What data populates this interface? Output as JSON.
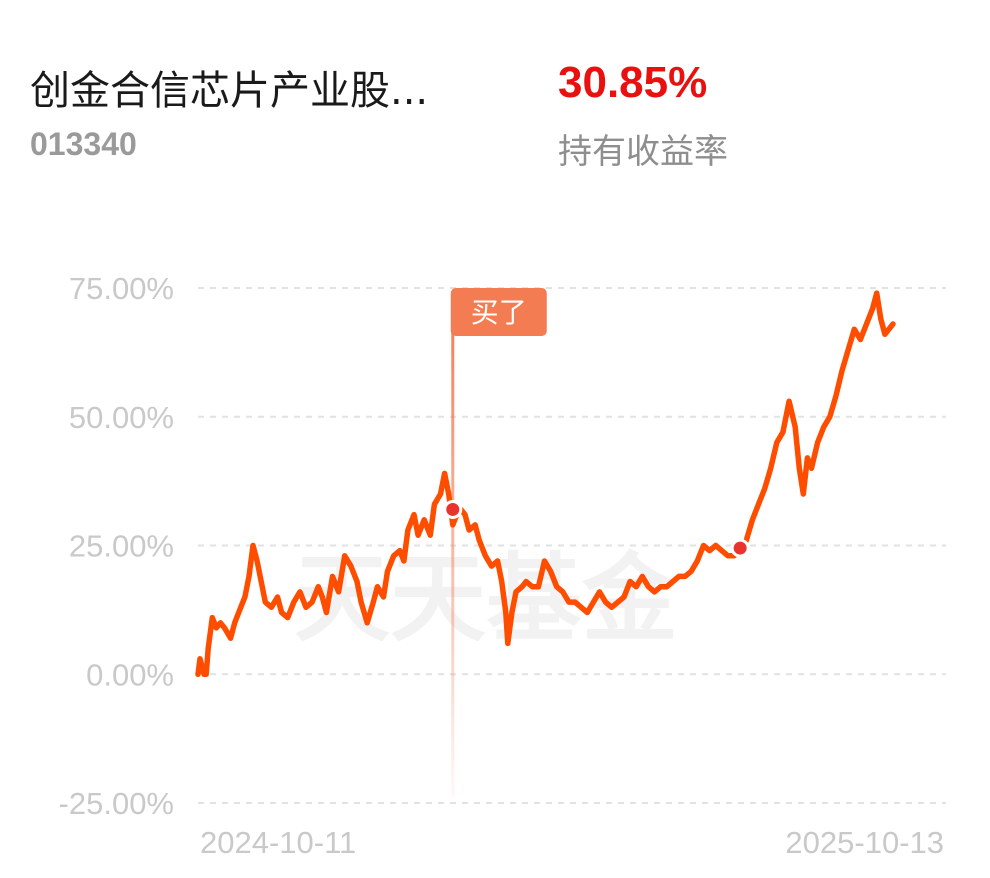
{
  "header": {
    "fund_name": "创金合信芯片产业股...",
    "fund_code": "013340",
    "return_value": "30.85%",
    "return_label": "持有收益率"
  },
  "colors": {
    "line": "#ff4d00",
    "return": "#e8110f",
    "marker": "#e8342c",
    "buy_tag": "#f47c52",
    "grid": "#e2e2e2",
    "axis_text": "#c9c9c9"
  },
  "chart_data": {
    "type": "line",
    "title": "",
    "xlabel": "",
    "ylabel": "",
    "x_range": [
      "2024-10-11",
      "2025-10-13"
    ],
    "x_tick_labels": [
      "2024-10-11",
      "2025-10-13"
    ],
    "y_ticks": [
      75,
      50,
      25,
      0,
      -25
    ],
    "y_tick_labels": [
      "75.00%",
      "50.00%",
      "25.00%",
      "0.00%",
      "-25.00%"
    ],
    "ylim": [
      -25,
      75
    ],
    "grid": "horizontal dashed",
    "watermark": "天天基金",
    "series": [
      {
        "points": [
          [
            "2024-10-11",
            0
          ],
          [
            "2024-10-12",
            3
          ],
          [
            "2024-10-14",
            0
          ],
          [
            "2024-10-15",
            0
          ],
          [
            "2024-10-16",
            5
          ],
          [
            "2024-10-18",
            11
          ],
          [
            "2024-10-20",
            9
          ],
          [
            "2024-10-22",
            10
          ],
          [
            "2024-10-24",
            9
          ],
          [
            "2024-10-27",
            7
          ],
          [
            "2024-10-29",
            10
          ],
          [
            "2024-11-01",
            13
          ],
          [
            "2024-11-03",
            15
          ],
          [
            "2024-11-05",
            19
          ],
          [
            "2024-11-07",
            25
          ],
          [
            "2024-11-09",
            22
          ],
          [
            "2024-11-11",
            18
          ],
          [
            "2024-11-13",
            14
          ],
          [
            "2024-11-16",
            13
          ],
          [
            "2024-11-19",
            15
          ],
          [
            "2024-11-21",
            12
          ],
          [
            "2024-11-24",
            11
          ],
          [
            "2024-11-27",
            14
          ],
          [
            "2024-11-30",
            16
          ],
          [
            "2024-12-03",
            13
          ],
          [
            "2024-12-06",
            14
          ],
          [
            "2024-12-09",
            17
          ],
          [
            "2024-12-11",
            15
          ],
          [
            "2024-12-13",
            12
          ],
          [
            "2024-12-16",
            19
          ],
          [
            "2024-12-19",
            16
          ],
          [
            "2024-12-22",
            23
          ],
          [
            "2024-12-25",
            21
          ],
          [
            "2024-12-28",
            18
          ],
          [
            "2024-12-30",
            14
          ],
          [
            "2025-01-02",
            10
          ],
          [
            "2025-01-05",
            14
          ],
          [
            "2025-01-07",
            17
          ],
          [
            "2025-01-10",
            15
          ],
          [
            "2025-01-12",
            20
          ],
          [
            "2025-01-15",
            23
          ],
          [
            "2025-01-18",
            24
          ],
          [
            "2025-01-20",
            22
          ],
          [
            "2025-01-22",
            28
          ],
          [
            "2025-01-25",
            31
          ],
          [
            "2025-01-27",
            27
          ],
          [
            "2025-01-30",
            30
          ],
          [
            "2025-02-02",
            27
          ],
          [
            "2025-02-04",
            33
          ],
          [
            "2025-02-07",
            35
          ],
          [
            "2025-02-09",
            39
          ],
          [
            "2025-02-11",
            35
          ],
          [
            "2025-02-13",
            29
          ],
          [
            "2025-02-15",
            31
          ],
          [
            "2025-02-17",
            32
          ],
          [
            "2025-02-19",
            31
          ],
          [
            "2025-02-21",
            28
          ],
          [
            "2025-02-24",
            29
          ],
          [
            "2025-02-26",
            26
          ],
          [
            "2025-03-01",
            23
          ],
          [
            "2025-03-04",
            21
          ],
          [
            "2025-03-07",
            22
          ],
          [
            "2025-03-09",
            18
          ],
          [
            "2025-03-11",
            12
          ],
          [
            "2025-03-12",
            6
          ],
          [
            "2025-03-14",
            12
          ],
          [
            "2025-03-16",
            16
          ],
          [
            "2025-03-19",
            17
          ],
          [
            "2025-03-21",
            18
          ],
          [
            "2025-03-24",
            17
          ],
          [
            "2025-03-27",
            17
          ],
          [
            "2025-03-30",
            22
          ],
          [
            "2025-04-02",
            20
          ],
          [
            "2025-04-05",
            17
          ],
          [
            "2025-04-08",
            16
          ],
          [
            "2025-04-11",
            14
          ],
          [
            "2025-04-14",
            14
          ],
          [
            "2025-04-17",
            13
          ],
          [
            "2025-04-20",
            12
          ],
          [
            "2025-04-23",
            14
          ],
          [
            "2025-04-26",
            16
          ],
          [
            "2025-04-29",
            14
          ],
          [
            "2025-05-02",
            13
          ],
          [
            "2025-05-05",
            14
          ],
          [
            "2025-05-08",
            15
          ],
          [
            "2025-05-11",
            18
          ],
          [
            "2025-05-14",
            17
          ],
          [
            "2025-05-17",
            19
          ],
          [
            "2025-05-20",
            17
          ],
          [
            "2025-05-23",
            16
          ],
          [
            "2025-05-26",
            17
          ],
          [
            "2025-05-29",
            17
          ],
          [
            "2025-06-01",
            18
          ],
          [
            "2025-06-04",
            19
          ],
          [
            "2025-06-07",
            19
          ],
          [
            "2025-06-10",
            20
          ],
          [
            "2025-06-13",
            22
          ],
          [
            "2025-06-16",
            25
          ],
          [
            "2025-06-19",
            24
          ],
          [
            "2025-06-22",
            25
          ],
          [
            "2025-06-25",
            24
          ],
          [
            "2025-06-28",
            23
          ],
          [
            "2025-07-01",
            23
          ],
          [
            "2025-07-04",
            24
          ],
          [
            "2025-07-07",
            26
          ],
          [
            "2025-07-10",
            30
          ],
          [
            "2025-07-13",
            33
          ],
          [
            "2025-07-16",
            36
          ],
          [
            "2025-07-19",
            40
          ],
          [
            "2025-07-22",
            45
          ],
          [
            "2025-07-25",
            47
          ],
          [
            "2025-07-28",
            53
          ],
          [
            "2025-07-31",
            48
          ],
          [
            "2025-08-02",
            40
          ],
          [
            "2025-08-04",
            35
          ],
          [
            "2025-08-06",
            42
          ],
          [
            "2025-08-08",
            40
          ],
          [
            "2025-08-11",
            45
          ],
          [
            "2025-08-14",
            48
          ],
          [
            "2025-08-17",
            50
          ],
          [
            "2025-08-20",
            54
          ],
          [
            "2025-08-23",
            59
          ],
          [
            "2025-08-26",
            63
          ],
          [
            "2025-08-29",
            67
          ],
          [
            "2025-09-01",
            65
          ],
          [
            "2025-09-04",
            68
          ],
          [
            "2025-09-07",
            71
          ],
          [
            "2025-09-09",
            74
          ],
          [
            "2025-09-11",
            69
          ],
          [
            "2025-09-13",
            66
          ],
          [
            "2025-09-15",
            67
          ],
          [
            "2025-09-17",
            68
          ]
        ]
      }
    ],
    "annotations": [
      {
        "type": "buy",
        "text": "买了",
        "date": "2025-02-13",
        "value": 32
      },
      {
        "type": "marker",
        "date": "2025-07-04",
        "value": 24.5
      }
    ]
  }
}
